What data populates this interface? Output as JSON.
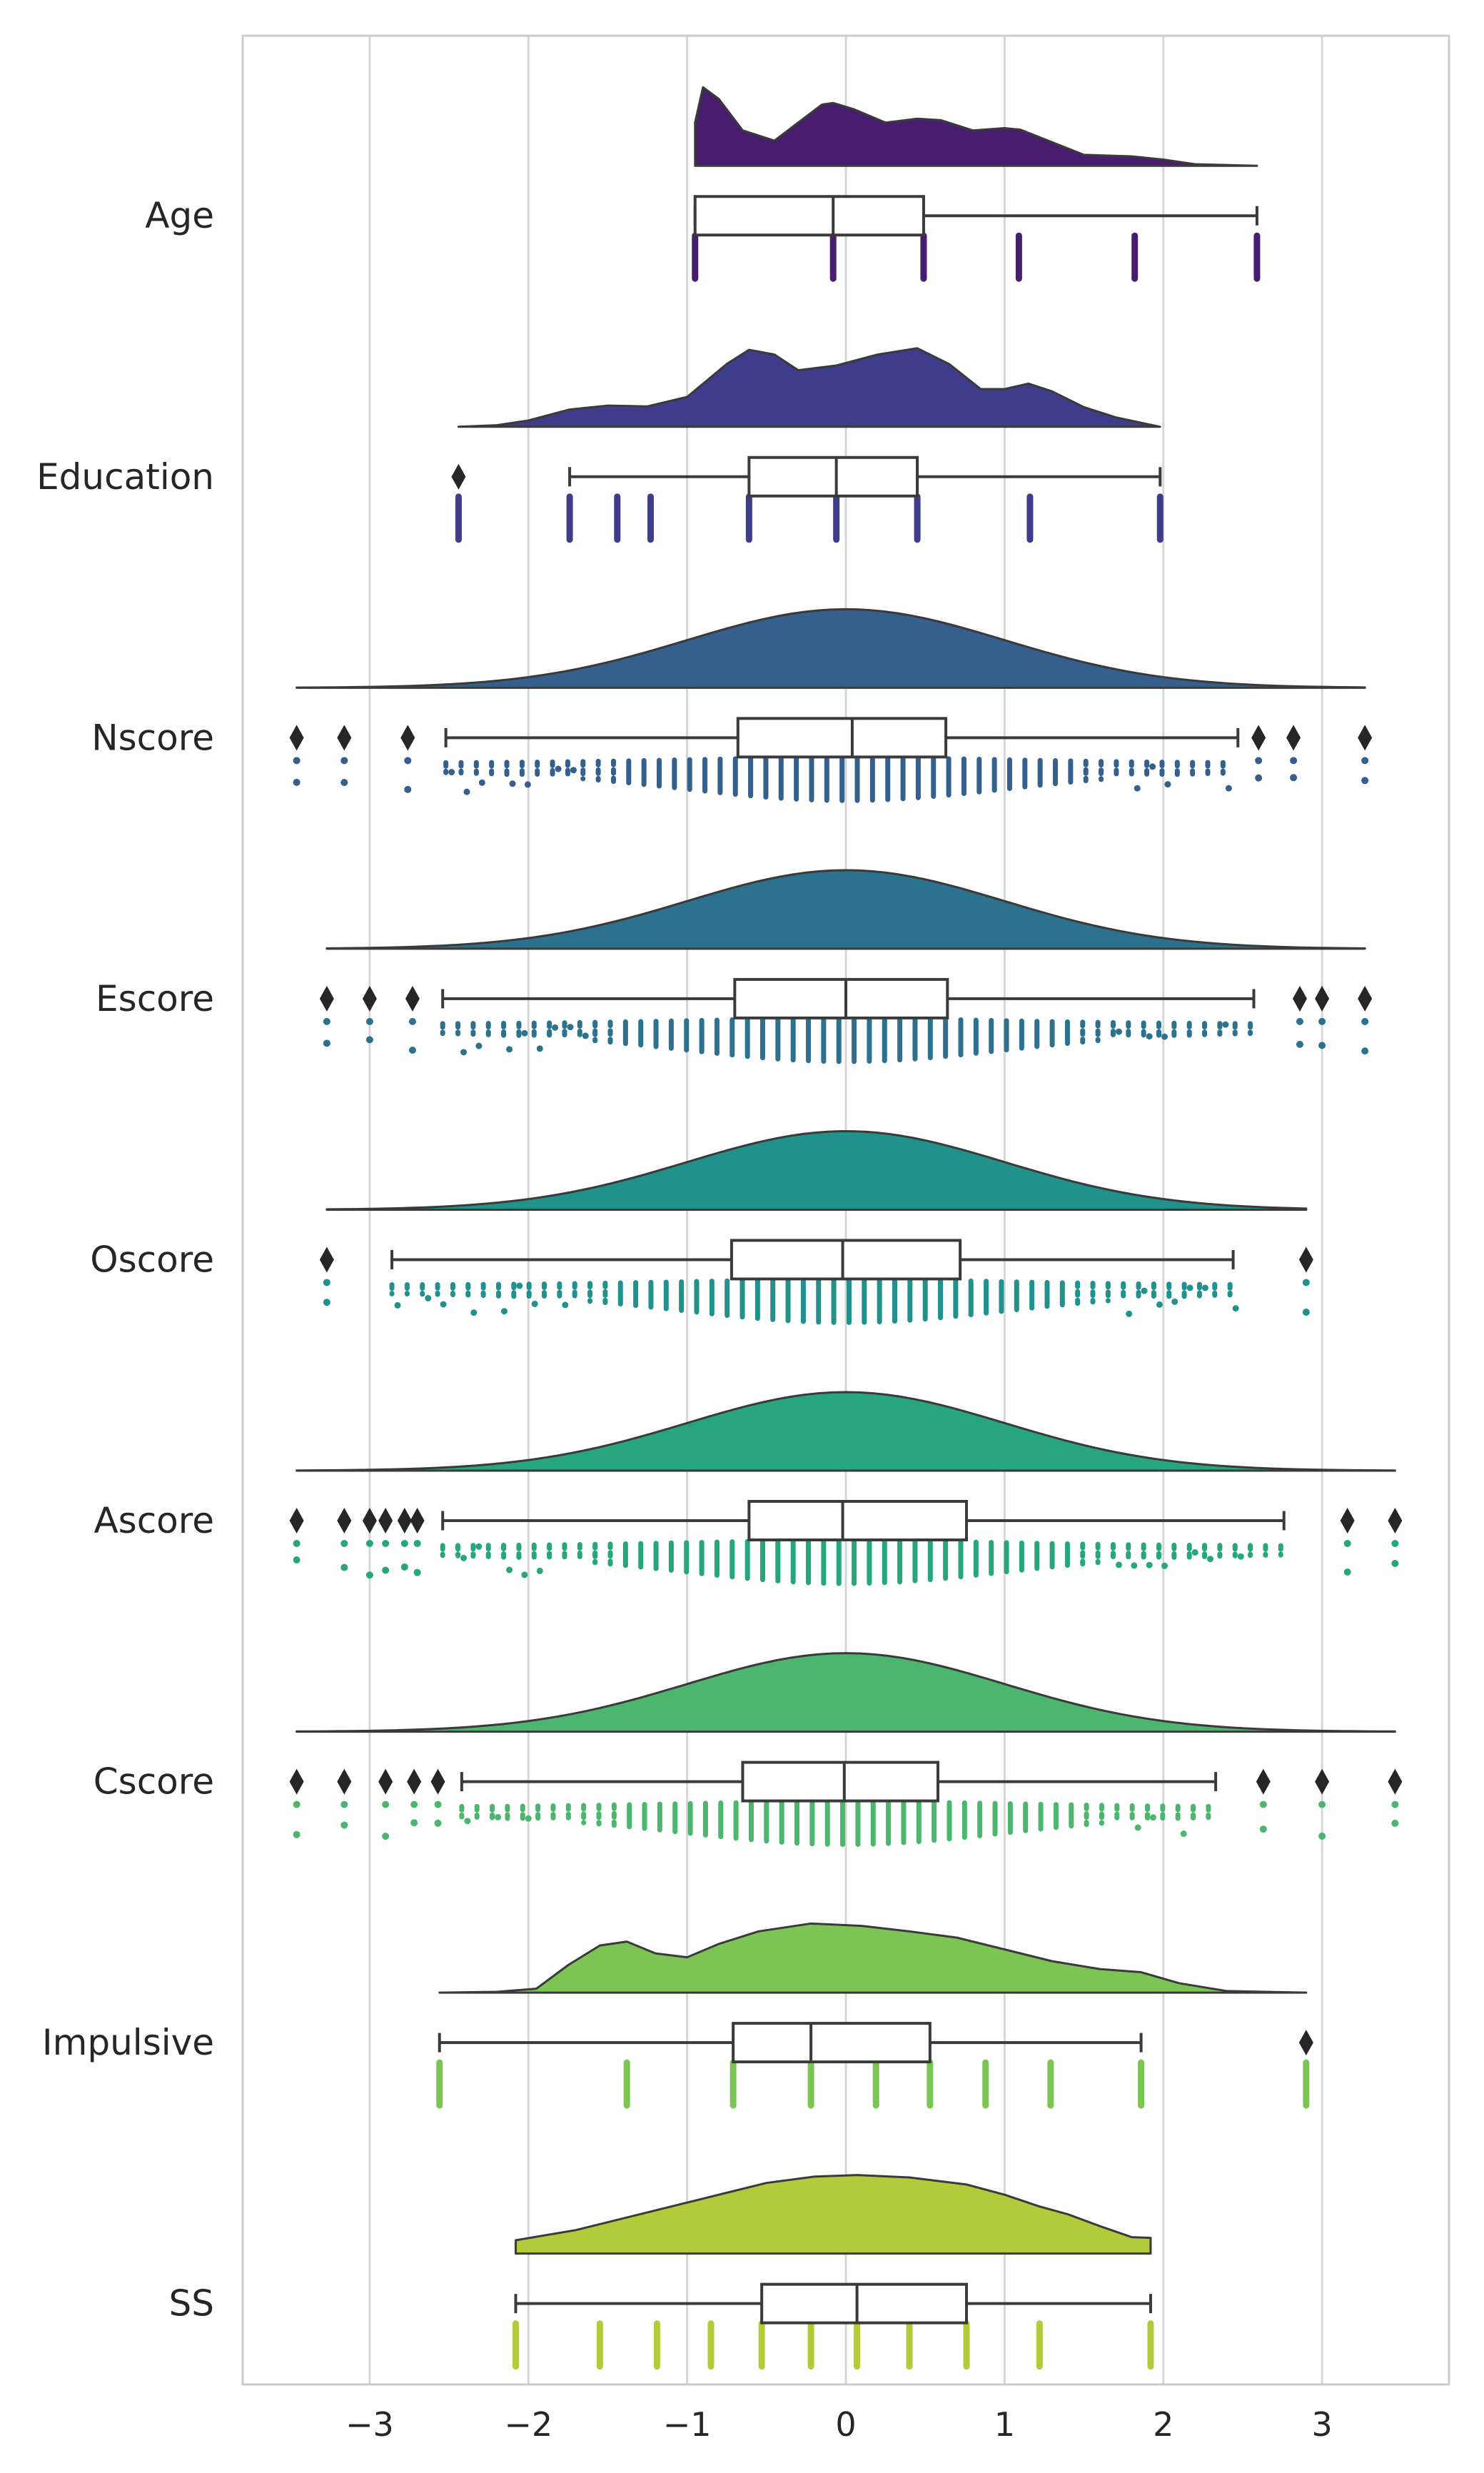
{
  "chart_data": {
    "type": "raincloud",
    "title": "",
    "xlabel": "",
    "ylabel": "",
    "xlim": [
      -3.8,
      3.8
    ],
    "grid": true,
    "x_ticks": [
      {
        "value": -3,
        "label": "−3"
      },
      {
        "value": -2,
        "label": "−2"
      },
      {
        "value": -1,
        "label": "−1"
      },
      {
        "value": 0,
        "label": "0"
      },
      {
        "value": 1,
        "label": "1"
      },
      {
        "value": 2,
        "label": "2"
      },
      {
        "value": 3,
        "label": "3"
      }
    ],
    "series": [
      {
        "name": "Age",
        "color": "#481c6e",
        "min": -0.95,
        "q1": -0.95,
        "median": -0.08,
        "q3": 0.49,
        "max": 2.59,
        "outliers": [],
        "density": [
          [
            -0.95,
            0.55
          ],
          [
            -0.9,
            1.0
          ],
          [
            -0.8,
            0.85
          ],
          [
            -0.65,
            0.45
          ],
          [
            -0.45,
            0.32
          ],
          [
            -0.3,
            0.55
          ],
          [
            -0.15,
            0.78
          ],
          [
            -0.08,
            0.8
          ],
          [
            0.05,
            0.72
          ],
          [
            0.25,
            0.55
          ],
          [
            0.45,
            0.6
          ],
          [
            0.6,
            0.58
          ],
          [
            0.8,
            0.45
          ],
          [
            1.0,
            0.48
          ],
          [
            1.1,
            0.46
          ],
          [
            1.3,
            0.3
          ],
          [
            1.5,
            0.14
          ],
          [
            1.8,
            0.12
          ],
          [
            2.0,
            0.08
          ],
          [
            2.2,
            0.02
          ],
          [
            2.59,
            0.0
          ]
        ],
        "points": [
          -0.95,
          -0.08,
          0.49,
          1.09,
          1.82,
          2.59
        ]
      },
      {
        "name": "Education",
        "color": "#3e3d8c",
        "min": -1.74,
        "q1": -0.61,
        "median": -0.06,
        "q3": 0.45,
        "max": 1.98,
        "outliers": [
          -2.44
        ],
        "density": [
          [
            -2.44,
            0.0
          ],
          [
            -2.2,
            0.02
          ],
          [
            -2.0,
            0.08
          ],
          [
            -1.74,
            0.22
          ],
          [
            -1.5,
            0.27
          ],
          [
            -1.25,
            0.26
          ],
          [
            -1.0,
            0.38
          ],
          [
            -0.75,
            0.8
          ],
          [
            -0.61,
            0.98
          ],
          [
            -0.45,
            0.92
          ],
          [
            -0.3,
            0.72
          ],
          [
            -0.06,
            0.78
          ],
          [
            0.2,
            0.92
          ],
          [
            0.45,
            1.0
          ],
          [
            0.65,
            0.8
          ],
          [
            0.85,
            0.48
          ],
          [
            1.0,
            0.48
          ],
          [
            1.15,
            0.55
          ],
          [
            1.3,
            0.45
          ],
          [
            1.5,
            0.25
          ],
          [
            1.7,
            0.12
          ],
          [
            1.98,
            0.0
          ]
        ],
        "points": [
          -2.44,
          -1.74,
          -1.44,
          -1.23,
          -0.61,
          -0.06,
          0.45,
          1.16,
          1.98
        ]
      },
      {
        "name": "Nscore",
        "color": "#355f8d",
        "min": -2.52,
        "q1": -0.68,
        "median": 0.04,
        "q3": 0.63,
        "max": 2.47,
        "outliers": [
          -3.46,
          -3.16,
          -2.76,
          2.6,
          2.82,
          3.27
        ],
        "density": "normal",
        "kde_range": [
          -3.46,
          3.27
        ],
        "points": "dense"
      },
      {
        "name": "Escore",
        "color": "#2c718e",
        "min": -2.54,
        "q1": -0.7,
        "median": 0.0,
        "q3": 0.64,
        "max": 2.57,
        "outliers": [
          -3.27,
          -3.0,
          -2.73,
          2.86,
          3.0,
          3.27
        ],
        "density": "normal",
        "kde_range": [
          -3.27,
          3.27
        ],
        "points": "dense"
      },
      {
        "name": "Oscore",
        "color": "#21918c",
        "min": -2.86,
        "q1": -0.72,
        "median": -0.02,
        "q3": 0.72,
        "max": 2.44,
        "outliers": [
          -3.27,
          2.9
        ],
        "density": "normal",
        "kde_range": [
          -3.27,
          2.9
        ],
        "points": "dense"
      },
      {
        "name": "Ascore",
        "color": "#27a57f",
        "min": -2.54,
        "q1": -0.61,
        "median": -0.02,
        "q3": 0.76,
        "max": 2.76,
        "outliers": [
          -3.46,
          -3.16,
          -3.0,
          -2.9,
          -2.78,
          -2.7,
          3.16,
          3.46
        ],
        "density": "normal",
        "kde_range": [
          -3.46,
          3.46
        ],
        "points": "dense"
      },
      {
        "name": "Cscore",
        "color": "#4cb56e",
        "min": -2.42,
        "q1": -0.65,
        "median": -0.01,
        "q3": 0.58,
        "max": 2.33,
        "outliers": [
          -3.46,
          -3.16,
          -2.9,
          -2.72,
          -2.57,
          2.63,
          3.0,
          3.46
        ],
        "density": "normal",
        "kde_range": [
          -3.46,
          3.46
        ],
        "points": "dense"
      },
      {
        "name": "Impulsive",
        "color": "#7cc554",
        "min": -2.56,
        "q1": -0.71,
        "median": -0.22,
        "q3": 0.53,
        "max": 1.86,
        "outliers": [
          2.9
        ],
        "density": [
          [
            -2.56,
            0.0
          ],
          [
            -2.2,
            0.01
          ],
          [
            -1.95,
            0.05
          ],
          [
            -1.75,
            0.35
          ],
          [
            -1.55,
            0.6
          ],
          [
            -1.38,
            0.65
          ],
          [
            -1.2,
            0.5
          ],
          [
            -1.0,
            0.45
          ],
          [
            -0.8,
            0.62
          ],
          [
            -0.55,
            0.78
          ],
          [
            -0.22,
            0.88
          ],
          [
            0.1,
            0.85
          ],
          [
            0.4,
            0.78
          ],
          [
            0.7,
            0.7
          ],
          [
            1.0,
            0.55
          ],
          [
            1.3,
            0.4
          ],
          [
            1.6,
            0.3
          ],
          [
            1.86,
            0.26
          ],
          [
            2.1,
            0.12
          ],
          [
            2.4,
            0.02
          ],
          [
            2.9,
            0.0
          ]
        ],
        "points": [
          -2.56,
          -1.38,
          -0.71,
          -0.22,
          0.19,
          0.53,
          0.88,
          1.29,
          1.86,
          2.9
        ]
      },
      {
        "name": "SS",
        "color": "#b2cb3b",
        "min": -2.08,
        "q1": -0.53,
        "median": 0.07,
        "q3": 0.76,
        "max": 1.92,
        "outliers": [],
        "density": [
          [
            -2.08,
            0.17
          ],
          [
            -1.7,
            0.3
          ],
          [
            -1.3,
            0.5
          ],
          [
            -0.9,
            0.7
          ],
          [
            -0.5,
            0.9
          ],
          [
            -0.2,
            0.98
          ],
          [
            0.07,
            1.0
          ],
          [
            0.4,
            0.97
          ],
          [
            0.76,
            0.88
          ],
          [
            1.0,
            0.75
          ],
          [
            1.22,
            0.6
          ],
          [
            1.4,
            0.5
          ],
          [
            1.6,
            0.35
          ],
          [
            1.8,
            0.21
          ],
          [
            1.92,
            0.2
          ]
        ],
        "points": [
          -2.08,
          -1.55,
          -1.19,
          -0.85,
          -0.53,
          -0.22,
          0.07,
          0.4,
          0.76,
          1.22,
          1.92
        ]
      }
    ]
  }
}
